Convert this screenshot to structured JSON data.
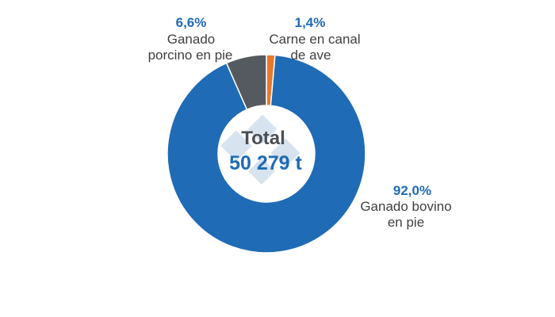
{
  "chart_data": {
    "type": "pie",
    "variant": "donut",
    "center": {
      "title": "Total",
      "value": "50 279 t"
    },
    "slices": [
      {
        "label_lines": [
          "Ganado bovino",
          "en pie"
        ],
        "percent_label": "92,0%",
        "value": 92.0,
        "color": "#1f6bb5"
      },
      {
        "label_lines": [
          "Ganado",
          "porcino en pie"
        ],
        "percent_label": "6,6%",
        "value": 6.6,
        "color": "#555a60"
      },
      {
        "label_lines": [
          "Carne en canal",
          "de ave"
        ],
        "percent_label": "1,4%",
        "value": 1.4,
        "color": "#e8792b"
      }
    ],
    "colors": {
      "percent_text": "#1f6bb5",
      "label_text": "#404040",
      "center_title": "#4a4f55",
      "center_value": "#1f6bb5",
      "watermark": "#c9d9e8"
    },
    "legend": "none"
  }
}
